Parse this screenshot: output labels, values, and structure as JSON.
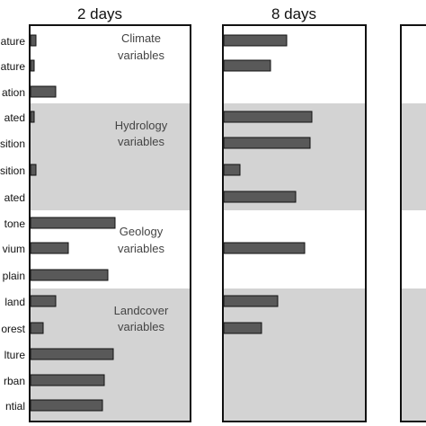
{
  "colors": {
    "bar_fill": "#595959",
    "bar_stroke": "#111111",
    "band_gray": "#d3d3d3",
    "frame": "#111111",
    "group_label": "#444444"
  },
  "chart_data": {
    "type": "bar",
    "orientation": "horizontal",
    "xlim": [
      0,
      1
    ],
    "grid": false,
    "categories": [
      "ature",
      "ature",
      "ation",
      "ated",
      "sition",
      "sition",
      "ated",
      "tone",
      "vium",
      "plain",
      "land",
      "orest",
      "lture",
      "rban",
      "ntial"
    ],
    "groups": [
      {
        "label_lines": [
          "Climate",
          "variables"
        ],
        "start": 0,
        "end": 2,
        "shaded": false
      },
      {
        "label_lines": [
          "Hydrology",
          "variables"
        ],
        "start": 3,
        "end": 6,
        "shaded": true
      },
      {
        "label_lines": [
          "Geology",
          "variables"
        ],
        "start": 7,
        "end": 9,
        "shaded": false
      },
      {
        "label_lines": [
          "Landcover",
          "variables"
        ],
        "start": 10,
        "end": 14,
        "shaded": true
      }
    ],
    "panels": [
      {
        "title": "2 days",
        "values": [
          0.03,
          0.02,
          0.14,
          0.02,
          null,
          0.03,
          null,
          0.47,
          0.21,
          0.43,
          0.14,
          0.07,
          0.46,
          0.41,
          0.4
        ]
      },
      {
        "title": "8 days",
        "values": [
          0.35,
          0.26,
          null,
          0.49,
          0.48,
          0.09,
          0.4,
          null,
          0.45,
          null,
          0.3,
          0.21,
          null,
          null,
          null
        ]
      },
      {
        "title": "",
        "values": [
          null,
          null,
          null,
          null,
          null,
          null,
          null,
          null,
          null,
          null,
          null,
          null,
          null,
          null,
          null
        ]
      }
    ]
  }
}
